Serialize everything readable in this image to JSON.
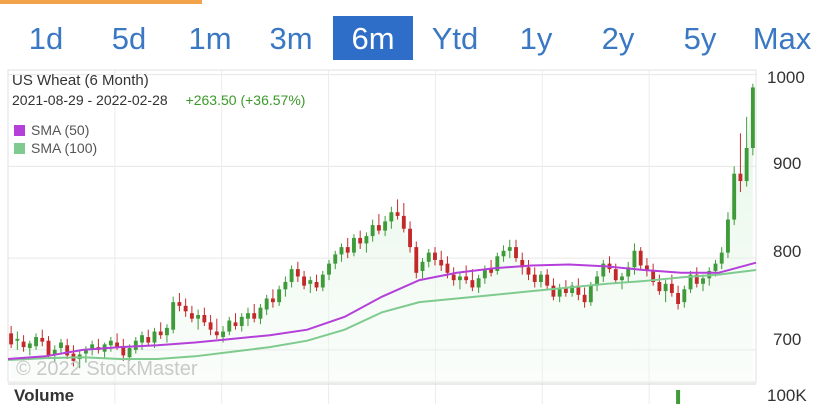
{
  "accent_color": "#f2a24a",
  "range_selector": {
    "items": [
      "1d",
      "5d",
      "1m",
      "3m",
      "6m",
      "Ytd",
      "1y",
      "2y",
      "5y",
      "Max"
    ],
    "active": "6m"
  },
  "header": {
    "title": "US Wheat (6 Month)",
    "date_range": "2021-08-29 - 2022-02-28",
    "change": "+263.50 (+36.57%)"
  },
  "legend": [
    {
      "label": "SMA (50)",
      "color": "#b43fd9"
    },
    {
      "label": "SMA (100)",
      "color": "#7fcb8f"
    }
  ],
  "watermark": "© 2022 StockMaster",
  "volume": {
    "label": "Volume",
    "tick": "100K"
  },
  "chart_data": {
    "type": "candlestick",
    "y_ticks": [
      "1000",
      "900",
      "800",
      "700"
    ],
    "ylim": [
      665,
      1005
    ],
    "grid": true,
    "up_color": "#3f9a3a",
    "down_color": "#c22a2a",
    "candles": [
      [
        718,
        726,
        702,
        706
      ],
      [
        710,
        720,
        700,
        712
      ],
      [
        709,
        716,
        698,
        703
      ],
      [
        702,
        710,
        694,
        707
      ],
      [
        704,
        718,
        700,
        714
      ],
      [
        713,
        722,
        704,
        709
      ],
      [
        710,
        715,
        690,
        694
      ],
      [
        695,
        705,
        686,
        700
      ],
      [
        702,
        712,
        696,
        708
      ],
      [
        705,
        712,
        690,
        694
      ],
      [
        696,
        705,
        682,
        688
      ],
      [
        690,
        700,
        680,
        695
      ],
      [
        696,
        704,
        686,
        700
      ],
      [
        700,
        710,
        694,
        706
      ],
      [
        703,
        712,
        696,
        700
      ],
      [
        698,
        708,
        690,
        706
      ],
      [
        705,
        714,
        698,
        710
      ],
      [
        708,
        718,
        700,
        703
      ],
      [
        704,
        712,
        688,
        694
      ],
      [
        692,
        706,
        688,
        702
      ],
      [
        700,
        714,
        696,
        710
      ],
      [
        708,
        720,
        700,
        716
      ],
      [
        714,
        722,
        704,
        708
      ],
      [
        708,
        724,
        702,
        720
      ],
      [
        720,
        730,
        712,
        716
      ],
      [
        716,
        728,
        708,
        724
      ],
      [
        722,
        758,
        718,
        752
      ],
      [
        752,
        762,
        742,
        748
      ],
      [
        748,
        756,
        736,
        742
      ],
      [
        740,
        748,
        730,
        734
      ],
      [
        734,
        744,
        722,
        738
      ],
      [
        738,
        746,
        726,
        730
      ],
      [
        730,
        738,
        716,
        722
      ],
      [
        720,
        734,
        712,
        716
      ],
      [
        714,
        726,
        708,
        720
      ],
      [
        720,
        736,
        716,
        732
      ],
      [
        730,
        740,
        722,
        726
      ],
      [
        726,
        740,
        720,
        736
      ],
      [
        734,
        746,
        726,
        740
      ],
      [
        740,
        750,
        730,
        734
      ],
      [
        734,
        750,
        728,
        746
      ],
      [
        744,
        760,
        738,
        756
      ],
      [
        756,
        766,
        746,
        752
      ],
      [
        752,
        770,
        748,
        766
      ],
      [
        766,
        780,
        758,
        774
      ],
      [
        774,
        792,
        768,
        788
      ],
      [
        788,
        796,
        774,
        780
      ],
      [
        780,
        786,
        766,
        770
      ],
      [
        772,
        780,
        762,
        776
      ],
      [
        774,
        782,
        764,
        768
      ],
      [
        768,
        786,
        764,
        782
      ],
      [
        782,
        798,
        776,
        794
      ],
      [
        794,
        808,
        788,
        804
      ],
      [
        804,
        816,
        796,
        812
      ],
      [
        812,
        822,
        800,
        806
      ],
      [
        806,
        826,
        802,
        822
      ],
      [
        822,
        830,
        810,
        816
      ],
      [
        816,
        828,
        806,
        824
      ],
      [
        824,
        842,
        818,
        836
      ],
      [
        836,
        848,
        826,
        830
      ],
      [
        830,
        846,
        824,
        840
      ],
      [
        840,
        856,
        832,
        850
      ],
      [
        850,
        864,
        842,
        846
      ],
      [
        846,
        860,
        828,
        832
      ],
      [
        832,
        840,
        806,
        812
      ],
      [
        812,
        818,
        778,
        784
      ],
      [
        786,
        800,
        778,
        796
      ],
      [
        796,
        810,
        790,
        806
      ],
      [
        806,
        812,
        792,
        798
      ],
      [
        798,
        808,
        786,
        792
      ],
      [
        794,
        802,
        778,
        784
      ],
      [
        782,
        790,
        770,
        776
      ],
      [
        776,
        784,
        766,
        780
      ],
      [
        780,
        792,
        772,
        776
      ],
      [
        776,
        788,
        764,
        768
      ],
      [
        768,
        782,
        762,
        778
      ],
      [
        778,
        792,
        772,
        788
      ],
      [
        788,
        798,
        780,
        784
      ],
      [
        786,
        806,
        782,
        802
      ],
      [
        802,
        814,
        796,
        808
      ],
      [
        808,
        820,
        800,
        812
      ],
      [
        812,
        820,
        796,
        800
      ],
      [
        798,
        806,
        782,
        790
      ],
      [
        790,
        798,
        776,
        782
      ],
      [
        782,
        790,
        768,
        774
      ],
      [
        774,
        786,
        768,
        782
      ],
      [
        782,
        788,
        766,
        770
      ],
      [
        770,
        778,
        754,
        758
      ],
      [
        758,
        772,
        752,
        768
      ],
      [
        768,
        776,
        758,
        762
      ],
      [
        762,
        774,
        758,
        770
      ],
      [
        770,
        778,
        754,
        760
      ],
      [
        760,
        768,
        746,
        752
      ],
      [
        752,
        774,
        748,
        770
      ],
      [
        770,
        786,
        764,
        780
      ],
      [
        780,
        798,
        774,
        794
      ],
      [
        794,
        802,
        784,
        788
      ],
      [
        788,
        794,
        772,
        776
      ],
      [
        776,
        784,
        766,
        780
      ],
      [
        780,
        796,
        774,
        790
      ],
      [
        790,
        816,
        782,
        808
      ],
      [
        808,
        812,
        788,
        792
      ],
      [
        792,
        800,
        780,
        786
      ],
      [
        786,
        794,
        770,
        774
      ],
      [
        774,
        782,
        760,
        764
      ],
      [
        764,
        776,
        752,
        772
      ],
      [
        772,
        782,
        758,
        762
      ],
      [
        762,
        770,
        744,
        750
      ],
      [
        752,
        770,
        746,
        766
      ],
      [
        766,
        786,
        762,
        782
      ],
      [
        782,
        790,
        768,
        772
      ],
      [
        772,
        782,
        764,
        778
      ],
      [
        778,
        790,
        770,
        786
      ],
      [
        786,
        798,
        780,
        794
      ],
      [
        794,
        812,
        788,
        806
      ],
      [
        806,
        850,
        800,
        842
      ],
      [
        842,
        900,
        836,
        892
      ],
      [
        892,
        936,
        872,
        884
      ],
      [
        884,
        954,
        878,
        920
      ],
      [
        920,
        990,
        912,
        986
      ]
    ],
    "sma50": [
      [
        0,
        690
      ],
      [
        0.05,
        693
      ],
      [
        0.1,
        700
      ],
      [
        0.15,
        703
      ],
      [
        0.2,
        705
      ],
      [
        0.25,
        708
      ],
      [
        0.3,
        712
      ],
      [
        0.35,
        716
      ],
      [
        0.4,
        722
      ],
      [
        0.45,
        736
      ],
      [
        0.5,
        758
      ],
      [
        0.55,
        776
      ],
      [
        0.6,
        784
      ],
      [
        0.65,
        789
      ],
      [
        0.7,
        792
      ],
      [
        0.75,
        793
      ],
      [
        0.8,
        791
      ],
      [
        0.85,
        787
      ],
      [
        0.9,
        784
      ],
      [
        0.95,
        784
      ],
      [
        1.0,
        795
      ]
    ],
    "sma100": [
      [
        0,
        689
      ],
      [
        0.05,
        691
      ],
      [
        0.1,
        692
      ],
      [
        0.15,
        690
      ],
      [
        0.2,
        690
      ],
      [
        0.25,
        693
      ],
      [
        0.3,
        698
      ],
      [
        0.35,
        703
      ],
      [
        0.4,
        710
      ],
      [
        0.45,
        722
      ],
      [
        0.5,
        741
      ],
      [
        0.55,
        752
      ],
      [
        0.6,
        756
      ],
      [
        0.65,
        760
      ],
      [
        0.7,
        764
      ],
      [
        0.75,
        768
      ],
      [
        0.8,
        772
      ],
      [
        0.85,
        775
      ],
      [
        0.9,
        779
      ],
      [
        0.95,
        782
      ],
      [
        1.0,
        787
      ]
    ],
    "volume_bar": {
      "index": 107,
      "value": "100K"
    }
  }
}
